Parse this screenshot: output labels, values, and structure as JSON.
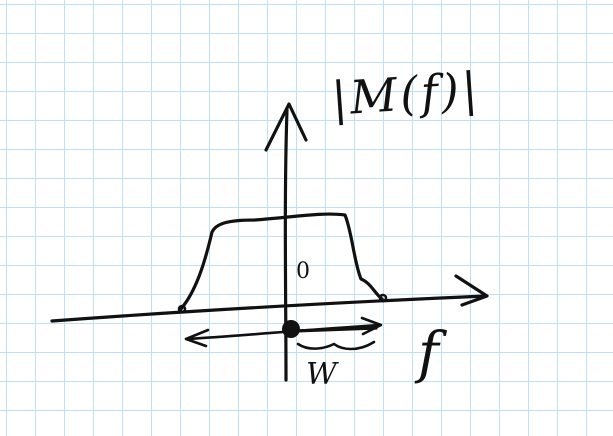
{
  "sketch": {
    "magnitude_label": "|M(f)|",
    "origin_label": "0",
    "frequency_axis_label": "f",
    "bandwidth_label": "W"
  }
}
